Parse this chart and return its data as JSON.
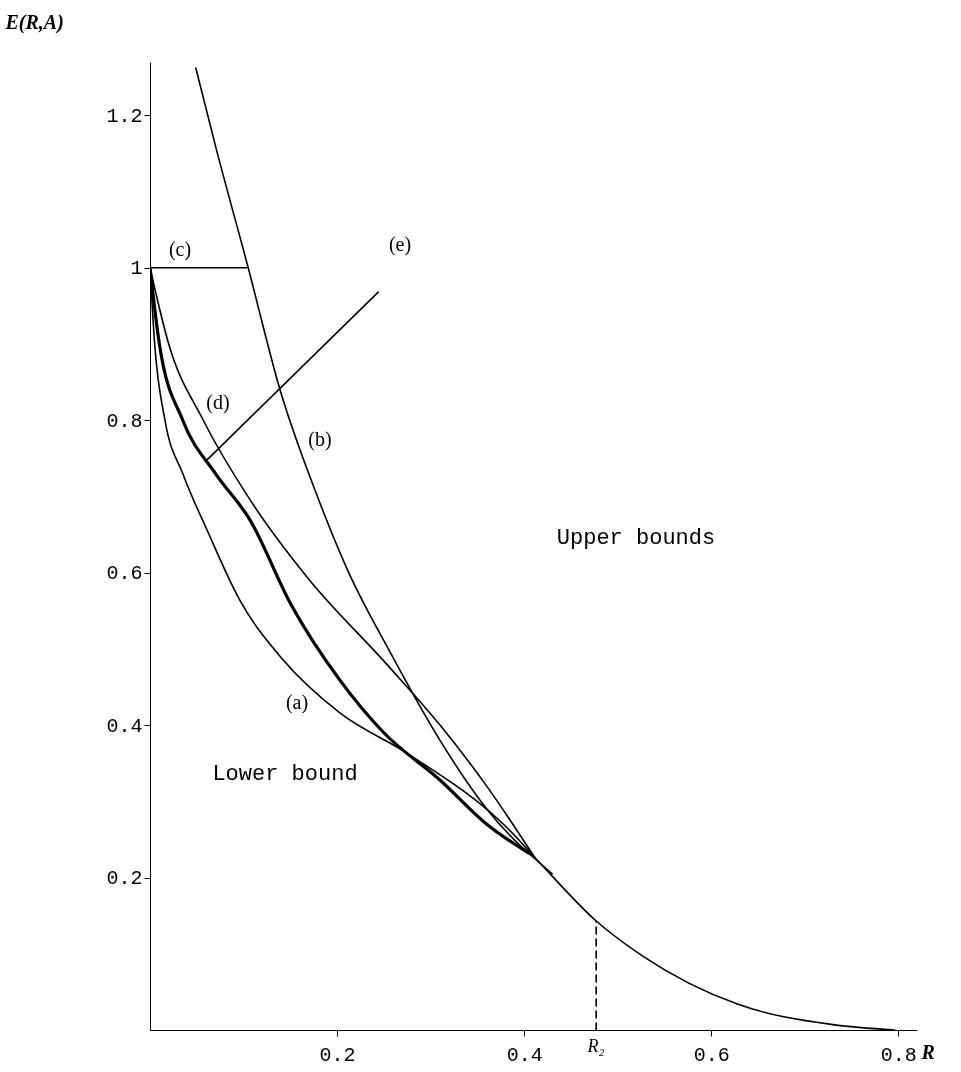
{
  "chart_data": {
    "type": "line",
    "xlabel": "R",
    "ylabel": "E(R,A)",
    "xlim": [
      0,
      0.82
    ],
    "ylim": [
      0,
      1.27
    ],
    "xticks": [
      0.2,
      0.4,
      0.6,
      0.8
    ],
    "yticks": [
      0.2,
      0.4,
      0.6,
      0.8,
      1,
      1.2
    ],
    "grid": false,
    "marker": "none",
    "series": [
      {
        "color": "#000000",
        "x": [
          0,
          0.005,
          0.016,
          0.035,
          0.061,
          0.096,
          0.142,
          0.203,
          0.275,
          0.382,
          0.42,
          0.477,
          0.528,
          0.628,
          0.73,
          0.796
        ],
        "values": [
          1,
          0.9,
          0.8,
          0.73,
          0.656,
          0.564,
          0.486,
          0.416,
          0.363,
          0.265,
          0.215,
          0.143,
          0.096,
          0.034,
          0.007,
          0
        ]
      },
      {
        "color": "#000000",
        "x": [
          0,
          0.01,
          0.035,
          0.07,
          0.107,
          0.15,
          0.203,
          0.25,
          0.31,
          0.36,
          0.405
        ],
        "values": [
          1,
          0.9,
          0.8,
          0.73,
          0.669,
          0.56,
          0.459,
          0.39,
          0.328,
          0.27,
          0.232
        ]
      },
      {
        "color": "#000000",
        "x": [
          0,
          0.02,
          0.057,
          0.11,
          0.168,
          0.253,
          0.31,
          0.36,
          0.412
        ],
        "values": [
          1,
          0.9,
          0.8,
          0.69,
          0.594,
          0.48,
          0.4,
          0.32,
          0.225
        ]
      },
      {
        "color": "#000000",
        "x": [
          0.049,
          0.07,
          0.105,
          0.139,
          0.179,
          0.211,
          0.257,
          0.31,
          0.36,
          0.43
        ],
        "values": [
          1.262,
          1.16,
          1.0,
          0.84,
          0.7,
          0.604,
          0.495,
          0.38,
          0.29,
          0.205
        ]
      },
      {
        "color": "#000000",
        "x": [
          0,
          0.105
        ],
        "values": [
          1,
          1
        ]
      },
      {
        "color": "#000000",
        "x": [
          0.061,
          0.244
        ],
        "values": [
          0.748,
          0.968
        ]
      },
      {
        "color": "#000000",
        "line_style": "dashed",
        "x": [
          0.477,
          0.477
        ],
        "values": [
          0,
          0.143
        ]
      }
    ],
    "annotations": [
      "(a)",
      "(b)",
      "(c)",
      "(d)",
      "(e)",
      "Upper bounds",
      "Lower bound",
      "R₂"
    ]
  }
}
